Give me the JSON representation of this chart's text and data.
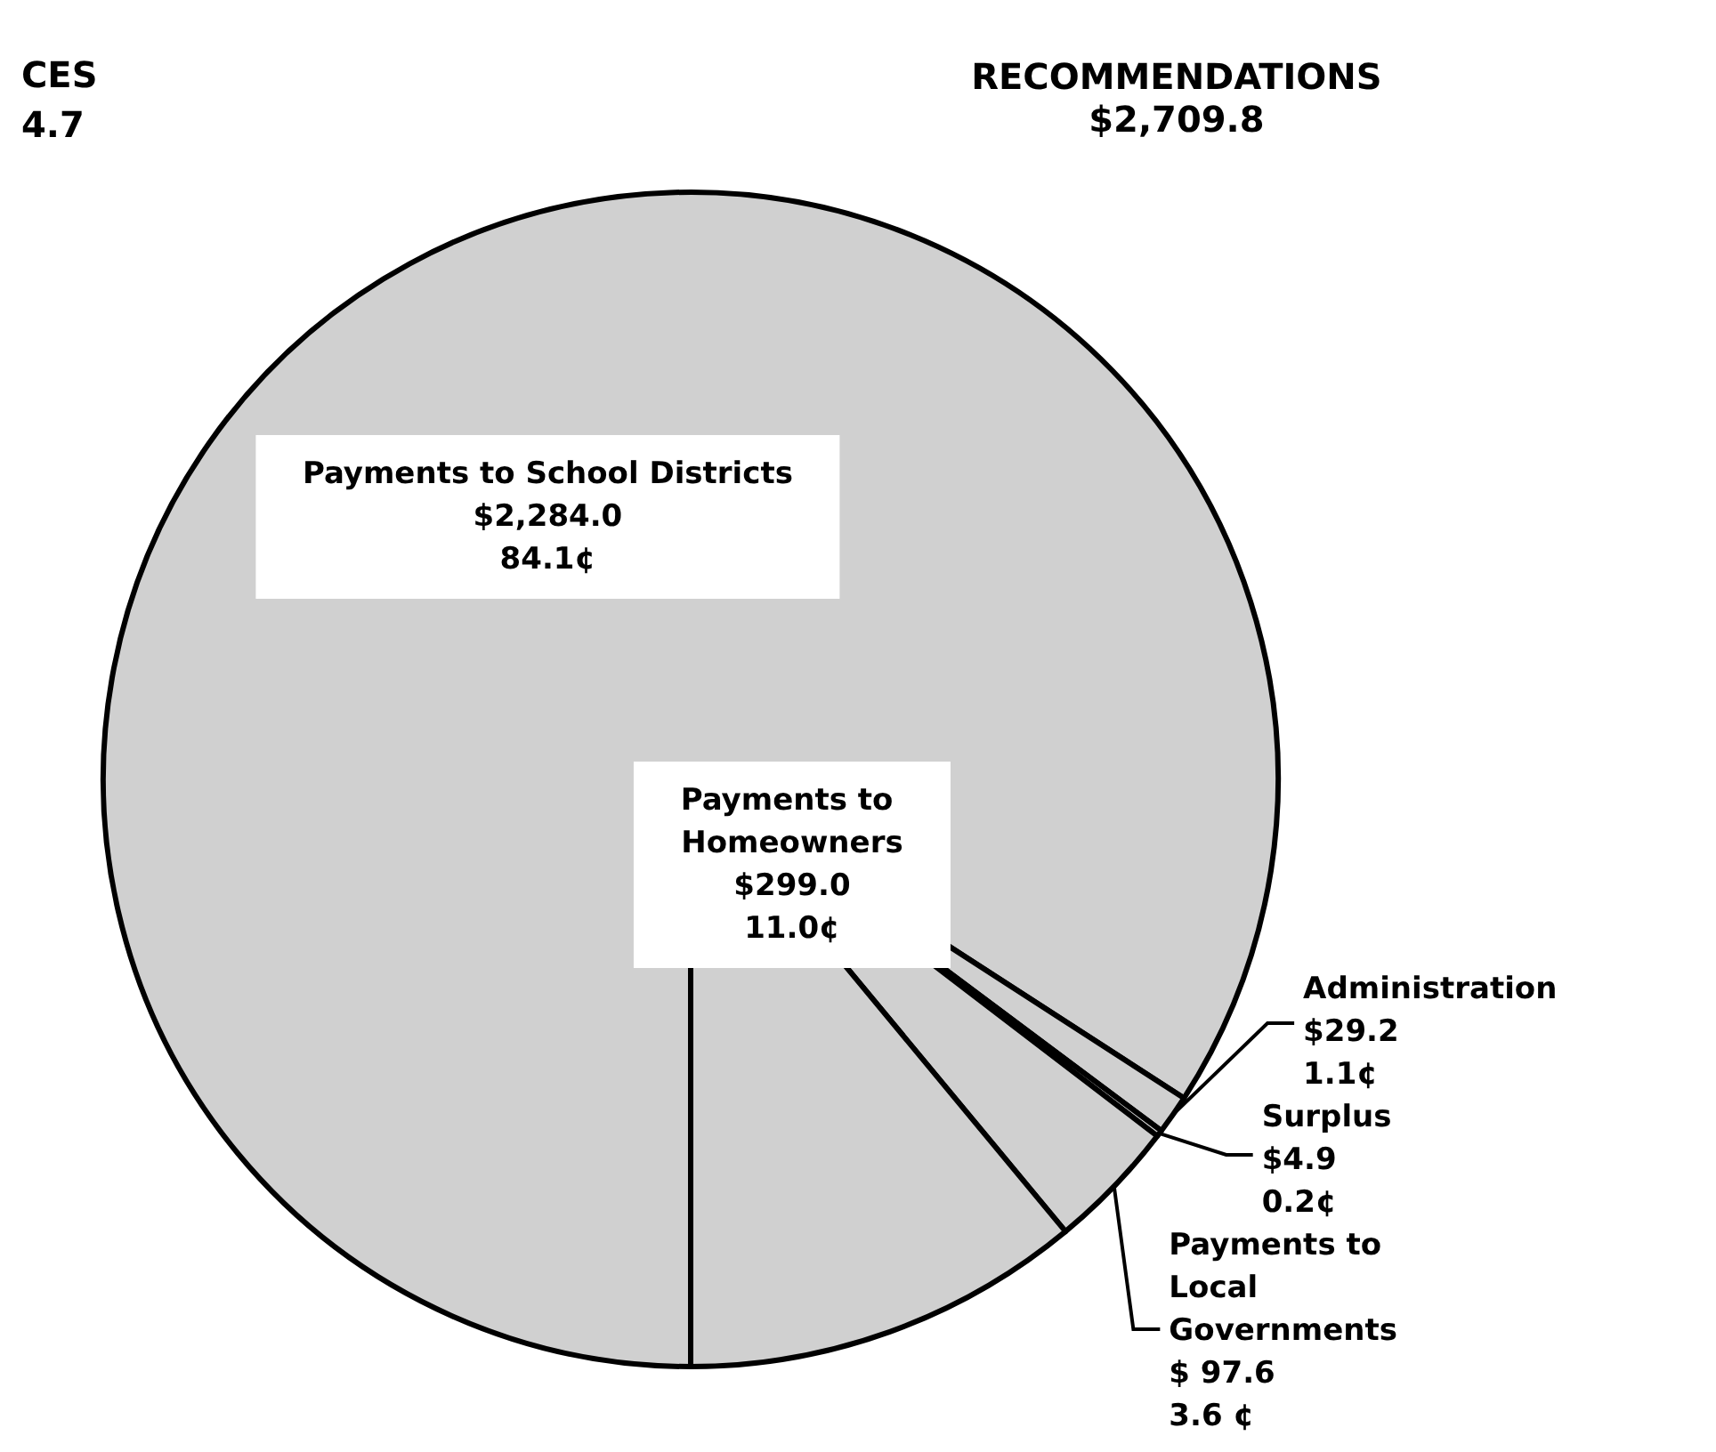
{
  "chart_data": {
    "type": "pie",
    "title": "RECOMMENDATIONS",
    "subtitle": "$2,709.8",
    "annotations": [
      "CES",
      "4.7"
    ],
    "categories": [
      "Payments to School Districts",
      "Administration",
      "Surplus",
      "Payments to Local Governments",
      "Payments to Homeowners"
    ],
    "values": [
      2284.0,
      29.2,
      4.9,
      97.6,
      299.0
    ],
    "value_labels": [
      "$2,284.0\n84.1¢",
      "$29.2\n1.1¢",
      "$4.9\n0.2¢",
      "$ 97.6\n3.6 ¢",
      "$299.0\n11.0¢"
    ],
    "colors": [
      "#d0d0d0",
      "#d0d0d0",
      "#d0d0d0",
      "#d0d0d0",
      "#d0d0d0"
    ],
    "legend": false
  }
}
